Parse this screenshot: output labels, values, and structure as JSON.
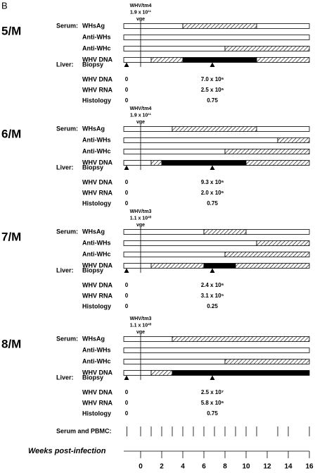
{
  "panel_label": "B",
  "animals": [
    {
      "id": "5/M",
      "inoculum": [
        "WHV/tm4",
        "1.9 x 10¹¹",
        "vge"
      ],
      "serum_label": "Serum:",
      "serum": [
        {
          "name": "WHsAg",
          "segments": [
            {
              "from": -1.6,
              "to": 4,
              "fill": "white"
            },
            {
              "from": 4,
              "to": 11,
              "fill": "hatched"
            },
            {
              "from": 11,
              "to": 16,
              "fill": "white"
            }
          ]
        },
        {
          "name": "Anti-WHs",
          "segments": [
            {
              "from": -1.6,
              "to": 16,
              "fill": "white"
            }
          ]
        },
        {
          "name": "Anti-WHc",
          "segments": [
            {
              "from": -1.6,
              "to": 8,
              "fill": "white"
            },
            {
              "from": 8,
              "to": 16,
              "fill": "hatched"
            }
          ]
        },
        {
          "name": "WHV DNA",
          "segments": [
            {
              "from": -1.6,
              "to": 1,
              "fill": "white"
            },
            {
              "from": 1,
              "to": 4,
              "fill": "hatched"
            },
            {
              "from": 4,
              "to": 11,
              "fill": "black"
            },
            {
              "from": 11,
              "to": 16,
              "fill": "hatched"
            }
          ]
        }
      ],
      "liver_label": "Liver:",
      "liver": [
        {
          "name": "Biopsy"
        },
        {
          "name": "WHV DNA",
          "values": [
            "0",
            "7.0 x 10⁶"
          ]
        },
        {
          "name": "WHV RNA",
          "values": [
            "0",
            "2.5 x 10⁶"
          ]
        },
        {
          "name": "Histology",
          "values": [
            "0",
            "0.75"
          ]
        }
      ]
    },
    {
      "id": "6/M",
      "inoculum": [
        "WHV/tm4",
        "1.9 x 10¹¹",
        "vge"
      ],
      "serum_label": "Serum:",
      "serum": [
        {
          "name": "WHsAg",
          "segments": [
            {
              "from": -1.6,
              "to": 3,
              "fill": "white"
            },
            {
              "from": 3,
              "to": 11,
              "fill": "hatched"
            },
            {
              "from": 11,
              "to": 16,
              "fill": "white"
            }
          ]
        },
        {
          "name": "Anti-WHs",
          "segments": [
            {
              "from": -1.6,
              "to": 13,
              "fill": "white"
            },
            {
              "from": 13,
              "to": 16,
              "fill": "hatched"
            }
          ]
        },
        {
          "name": "Anti-WHc",
          "segments": [
            {
              "from": -1.6,
              "to": 8,
              "fill": "white"
            },
            {
              "from": 8,
              "to": 16,
              "fill": "hatched"
            }
          ]
        },
        {
          "name": "WHV DNA",
          "segments": [
            {
              "from": -1.6,
              "to": 1,
              "fill": "white"
            },
            {
              "from": 1,
              "to": 2,
              "fill": "hatched"
            },
            {
              "from": 2,
              "to": 10,
              "fill": "black"
            },
            {
              "from": 10,
              "to": 16,
              "fill": "hatched"
            }
          ]
        }
      ],
      "liver_label": "Liver:",
      "liver": [
        {
          "name": "Biopsy"
        },
        {
          "name": "WHV DNA",
          "values": [
            "0",
            "9.3 x 10⁶"
          ]
        },
        {
          "name": "WHV RNA",
          "values": [
            "0",
            "2.0 x 10⁶"
          ]
        },
        {
          "name": "Histology",
          "values": [
            "0",
            "0.75"
          ]
        }
      ]
    },
    {
      "id": "7/M",
      "inoculum": [
        "WHV/tm3",
        "1.1 x 10¹⁰",
        "vge"
      ],
      "serum_label": "Serum:",
      "serum": [
        {
          "name": "WHsAg",
          "segments": [
            {
              "from": -1.6,
              "to": 6,
              "fill": "white"
            },
            {
              "from": 6,
              "to": 10,
              "fill": "hatched"
            },
            {
              "from": 10,
              "to": 16,
              "fill": "white"
            }
          ]
        },
        {
          "name": "Anti-WHs",
          "segments": [
            {
              "from": -1.6,
              "to": 11,
              "fill": "white"
            },
            {
              "from": 11,
              "to": 16,
              "fill": "hatched"
            }
          ]
        },
        {
          "name": "Anti-WHc",
          "segments": [
            {
              "from": -1.6,
              "to": 8,
              "fill": "white"
            },
            {
              "from": 8,
              "to": 16,
              "fill": "hatched"
            }
          ]
        },
        {
          "name": "WHV DNA",
          "segments": [
            {
              "from": -1.6,
              "to": 1,
              "fill": "white"
            },
            {
              "from": 1,
              "to": 6,
              "fill": "hatched"
            },
            {
              "from": 6,
              "to": 9,
              "fill": "black"
            },
            {
              "from": 9,
              "to": 16,
              "fill": "hatched"
            }
          ]
        }
      ],
      "liver_label": "Liver:",
      "liver": [
        {
          "name": "Biopsy"
        },
        {
          "name": "WHV DNA",
          "values": [
            "0",
            "2.4 x 10⁶"
          ]
        },
        {
          "name": "WHV RNA",
          "values": [
            "0",
            "3.1 x 10⁵"
          ]
        },
        {
          "name": "Histology",
          "values": [
            "0",
            "0.25"
          ]
        }
      ]
    },
    {
      "id": "8/M",
      "inoculum": [
        "WHV/tm3",
        "1.1 x 10¹⁰",
        "vge"
      ],
      "serum_label": "Serum:",
      "serum": [
        {
          "name": "WHsAg",
          "segments": [
            {
              "from": -1.6,
              "to": 3,
              "fill": "white"
            },
            {
              "from": 3,
              "to": 16,
              "fill": "hatched"
            }
          ]
        },
        {
          "name": "Anti-WHs",
          "segments": [
            {
              "from": -1.6,
              "to": 16,
              "fill": "white"
            }
          ]
        },
        {
          "name": "Anti-WHc",
          "segments": [
            {
              "from": -1.6,
              "to": 8,
              "fill": "white"
            },
            {
              "from": 8,
              "to": 16,
              "fill": "hatched"
            }
          ]
        },
        {
          "name": "WHV DNA",
          "segments": [
            {
              "from": -1.6,
              "to": 1,
              "fill": "white"
            },
            {
              "from": 1,
              "to": 3,
              "fill": "hatched"
            },
            {
              "from": 3,
              "to": 16,
              "fill": "black"
            }
          ]
        }
      ],
      "liver_label": "Liver:",
      "liver": [
        {
          "name": "Biopsy"
        },
        {
          "name": "WHV DNA",
          "values": [
            "0",
            "2.5 x 10⁷"
          ]
        },
        {
          "name": "WHV RNA",
          "values": [
            "0",
            "5.8 x 10⁶"
          ]
        },
        {
          "name": "Histology",
          "values": [
            "0",
            "0.75"
          ]
        }
      ]
    }
  ],
  "pbmc_label": "Serum and PBMC:",
  "pbmc_weeks": [
    -1.3,
    0,
    1,
    2,
    3,
    4,
    5,
    6,
    7,
    8,
    9,
    10,
    11,
    13,
    14,
    16
  ],
  "axis_label": "Weeks post-infection",
  "xlim": [
    -1.6,
    16
  ],
  "xticks": [
    0,
    2,
    4,
    6,
    8,
    10,
    12,
    14,
    16
  ]
}
